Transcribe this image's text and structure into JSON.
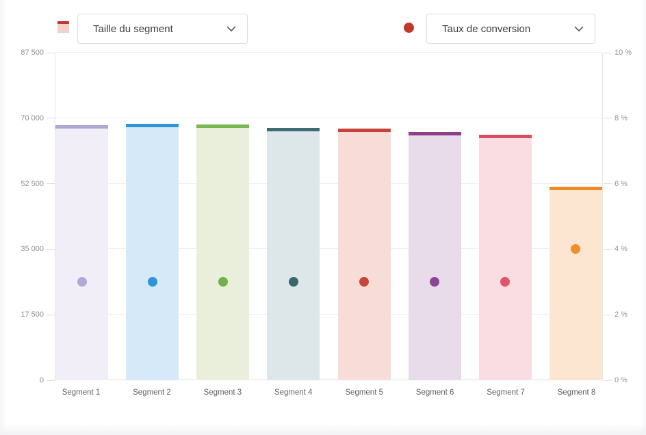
{
  "header": {
    "size_selector_label": "Taille du segment",
    "rate_selector_label": "Taux de conversion",
    "legend": {
      "size_swatch_fill": "#f5cfca",
      "size_swatch_top": "#c0392b",
      "rate_dot_color": "#bf392b"
    }
  },
  "chart_data": {
    "type": "bar",
    "categories": [
      "Segment 1",
      "Segment 2",
      "Segment 3",
      "Segment 4",
      "Segment 5",
      "Segment 6",
      "Segment 7",
      "Segment 8"
    ],
    "series": [
      {
        "name": "Taille du segment",
        "axis": "left",
        "values": [
          68200,
          68500,
          68300,
          67400,
          67200,
          66400,
          65600,
          51700
        ]
      },
      {
        "name": "Taux de conversion",
        "axis": "right",
        "unit": "%",
        "values": [
          3,
          3,
          3,
          3,
          3,
          3,
          3,
          4
        ]
      }
    ],
    "left_axis": {
      "tick_labels": [
        "0",
        "17 500",
        "35 000",
        "52 500",
        "70 000",
        "87 500"
      ],
      "min": 0,
      "max": 87500
    },
    "right_axis": {
      "tick_labels": [
        "0 %",
        "2 %",
        "4 %",
        "6 %",
        "8 %",
        "10 %"
      ],
      "min": 0,
      "max": 10
    },
    "bar_styles": [
      {
        "fill": "#f1eef7",
        "top": "#a9a9d3",
        "dot": "#aeaad8"
      },
      {
        "fill": "#d5e9f8",
        "top": "#2e96d8",
        "dot": "#2e96d8"
      },
      {
        "fill": "#e9efdb",
        "top": "#78b750",
        "dot": "#6fb24b"
      },
      {
        "fill": "#dde7e9",
        "top": "#3d6a74",
        "dot": "#39676e"
      },
      {
        "fill": "#f8dcd8",
        "top": "#c8423a",
        "dot": "#c5473c"
      },
      {
        "fill": "#e9dcea",
        "top": "#8e3f8c",
        "dot": "#8d4492"
      },
      {
        "fill": "#fadde2",
        "top": "#d94f5f",
        "dot": "#e05568"
      },
      {
        "fill": "#fce6d2",
        "top": "#ef8b25",
        "dot": "#ef8f2c"
      }
    ],
    "grid": true,
    "legend_position": "top"
  }
}
